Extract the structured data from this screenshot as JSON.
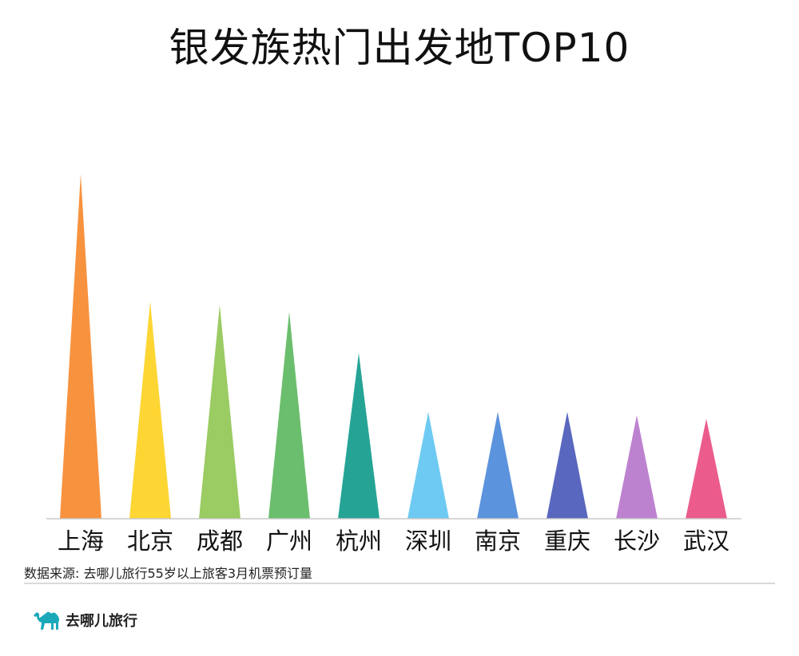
{
  "chart_data": {
    "type": "bar",
    "title": "银发族热门出发地TOP10",
    "categories": [
      "上海",
      "北京",
      "成都",
      "广州",
      "杭州",
      "深圳",
      "南京",
      "重庆",
      "长沙",
      "武汉"
    ],
    "values": [
      100,
      63,
      62,
      60,
      48,
      31,
      31,
      31,
      30,
      29
    ],
    "colors": [
      "#F7923F",
      "#FDD633",
      "#9BCB63",
      "#6BBE6D",
      "#25A496",
      "#6ECAF2",
      "#5B93DD",
      "#5A67BE",
      "#BD82CF",
      "#EB5C8C"
    ],
    "ylim": [
      0,
      100
    ],
    "grid": false,
    "legend": "none"
  },
  "source": "数据来源: 去哪儿旅行55岁以上旅客3月机票预订量",
  "brand": {
    "name": "去哪儿旅行",
    "logo_icon": "camel-icon",
    "color": "#1BA9BA"
  }
}
